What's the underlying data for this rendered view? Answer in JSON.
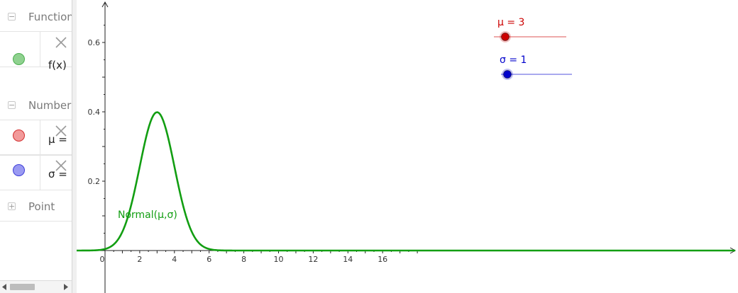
{
  "algebra": {
    "categories": [
      {
        "label": "Function",
        "toggle": "−"
      },
      {
        "label": "Number",
        "toggle": "−"
      },
      {
        "label": "Point",
        "toggle": "+"
      }
    ],
    "items": [
      {
        "text": "f(x)",
        "color": "#4caf50",
        "fill": "#8fd18f"
      },
      {
        "text": "μ =",
        "color": "#d32f2f",
        "fill": "#f29a9a"
      },
      {
        "text": "σ =",
        "color": "#3f3fd8",
        "fill": "#9a9af2"
      }
    ]
  },
  "graph": {
    "x_ticks": [
      "0",
      "2",
      "4",
      "6",
      "8",
      "10",
      "12",
      "14",
      "16"
    ],
    "y_ticks": [
      "0.2",
      "0.4",
      "0.6"
    ],
    "function_label": "Normal(μ,σ)",
    "curve_color": "#129e12",
    "sliders": [
      {
        "label": "μ = 3",
        "value": 3,
        "color": "#cc0000"
      },
      {
        "label": "σ = 1",
        "value": 1,
        "color": "#0000cc"
      }
    ]
  },
  "chart_data": {
    "type": "line",
    "series": [
      {
        "name": "Normal(μ,σ)",
        "mu": 3,
        "sigma": 1
      }
    ],
    "xlim": [
      -0.5,
      18.5
    ],
    "ylim": [
      -0.1,
      0.7
    ],
    "grid": false
  }
}
